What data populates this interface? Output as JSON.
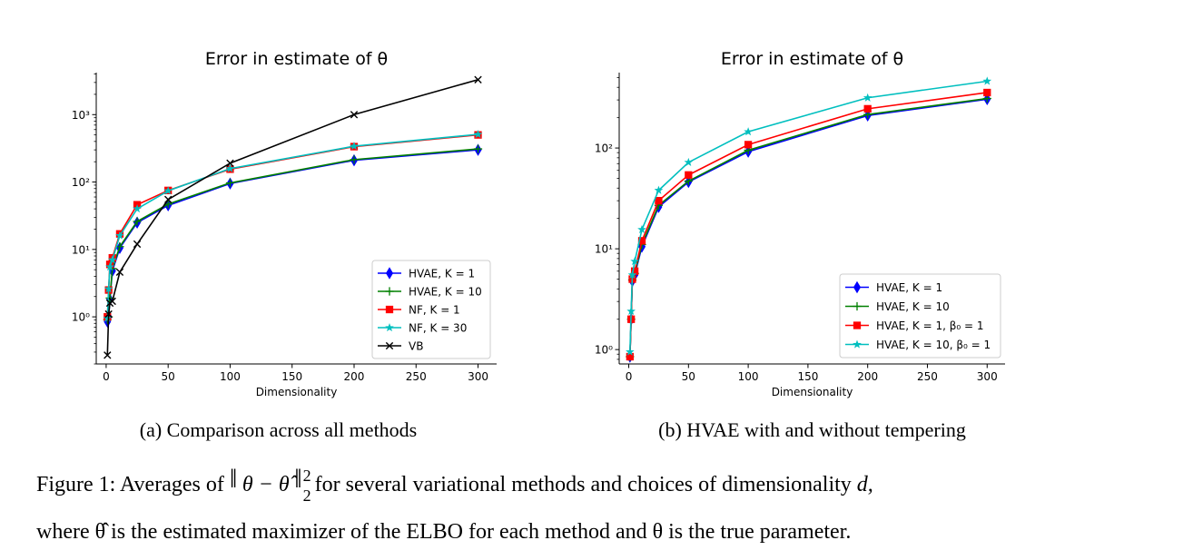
{
  "chart_data": [
    {
      "type": "line",
      "title": "Error in estimate of θ",
      "xlabel": "Dimensionality",
      "ylabel": "",
      "yscale": "log",
      "xlim": [
        -8,
        315
      ],
      "ylim": [
        0.2,
        4200
      ],
      "xticks": [
        0,
        50,
        100,
        150,
        200,
        250,
        300
      ],
      "yticks": [
        {
          "value": 1,
          "label": "10⁰"
        },
        {
          "value": 10,
          "label": "10¹"
        },
        {
          "value": 100,
          "label": "10²"
        },
        {
          "value": 1000,
          "label": "10³"
        }
      ],
      "legend": "lower-right",
      "subcaption": "(a) Comparison across all methods",
      "x": [
        1,
        2,
        3,
        5,
        11,
        25,
        50,
        100,
        200,
        300
      ],
      "series": [
        {
          "name": "HVAE, K = 1",
          "color": "#0000ff",
          "marker": "diamond",
          "values": [
            0.85,
            1.0,
            1.8,
            4.8,
            10.5,
            25,
            45,
            95,
            210,
            300
          ]
        },
        {
          "name": "HVAE, K = 10",
          "color": "#008000",
          "marker": "plus",
          "values": [
            0.9,
            1.0,
            1.9,
            5.2,
            11,
            26,
            47,
            97,
            215,
            310
          ]
        },
        {
          "name": "NF, K = 1",
          "color": "#ff0000",
          "marker": "square",
          "values": [
            1.0,
            2.5,
            6.0,
            7.5,
            17,
            46,
            75,
            155,
            335,
            500
          ]
        },
        {
          "name": "NF, K = 30",
          "color": "#00bfbf",
          "marker": "star",
          "values": [
            0.95,
            2.6,
            5.5,
            7.0,
            16,
            40,
            74,
            158,
            340,
            510
          ]
        },
        {
          "name": "VB",
          "color": "#000000",
          "marker": "x",
          "values": [
            0.27,
            1.1,
            1.6,
            1.7,
            4.6,
            12,
            55,
            190,
            1000,
            3300
          ]
        }
      ]
    },
    {
      "type": "line",
      "title": "Error in estimate of θ",
      "xlabel": "Dimensionality",
      "ylabel": "",
      "yscale": "log",
      "xlim": [
        -8,
        315
      ],
      "ylim": [
        0.72,
        560
      ],
      "xticks": [
        0,
        50,
        100,
        150,
        200,
        250,
        300
      ],
      "yticks": [
        {
          "value": 1,
          "label": "10⁰"
        },
        {
          "value": 10,
          "label": "10¹"
        },
        {
          "value": 100,
          "label": "10²"
        }
      ],
      "legend": "lower-right",
      "subcaption": "(b) HVAE with and without tempering",
      "x": [
        1,
        2,
        3,
        5,
        11,
        25,
        50,
        100,
        200,
        300
      ],
      "series": [
        {
          "name": "HVAE, K = 1",
          "color": "#0000ff",
          "marker": "diamond",
          "values": [
            0.85,
            2.0,
            4.8,
            5.5,
            10.5,
            26,
            46,
            92,
            210,
            305
          ]
        },
        {
          "name": "HVAE, K = 10",
          "color": "#008000",
          "marker": "plus",
          "values": [
            0.85,
            2.0,
            4.9,
            5.7,
            11,
            27,
            47,
            95,
            215,
            310
          ]
        },
        {
          "name": "HVAE, K = 1, β₀ = 1",
          "color": "#ff0000",
          "marker": "square",
          "values": [
            0.85,
            2.0,
            5.0,
            6.0,
            12,
            30,
            54,
            108,
            245,
            355
          ]
        },
        {
          "name": "HVAE, K = 10, β₀ = 1",
          "color": "#00bfbf",
          "marker": "star",
          "values": [
            0.95,
            2.4,
            5.5,
            7.5,
            15.5,
            38,
            72,
            145,
            315,
            460
          ]
        }
      ]
    }
  ],
  "caption": {
    "prefix": "Figure 1: Averages of",
    "norm_expr": "θ − θ̂",
    "norm_sup": "2",
    "norm_sub": "2",
    "suffix": "for several variational methods and choices of dimensionality",
    "dim_symbol": "d,",
    "line2": "where θ̂ is the estimated maximizer of the ELBO for each method and θ is the true parameter."
  }
}
